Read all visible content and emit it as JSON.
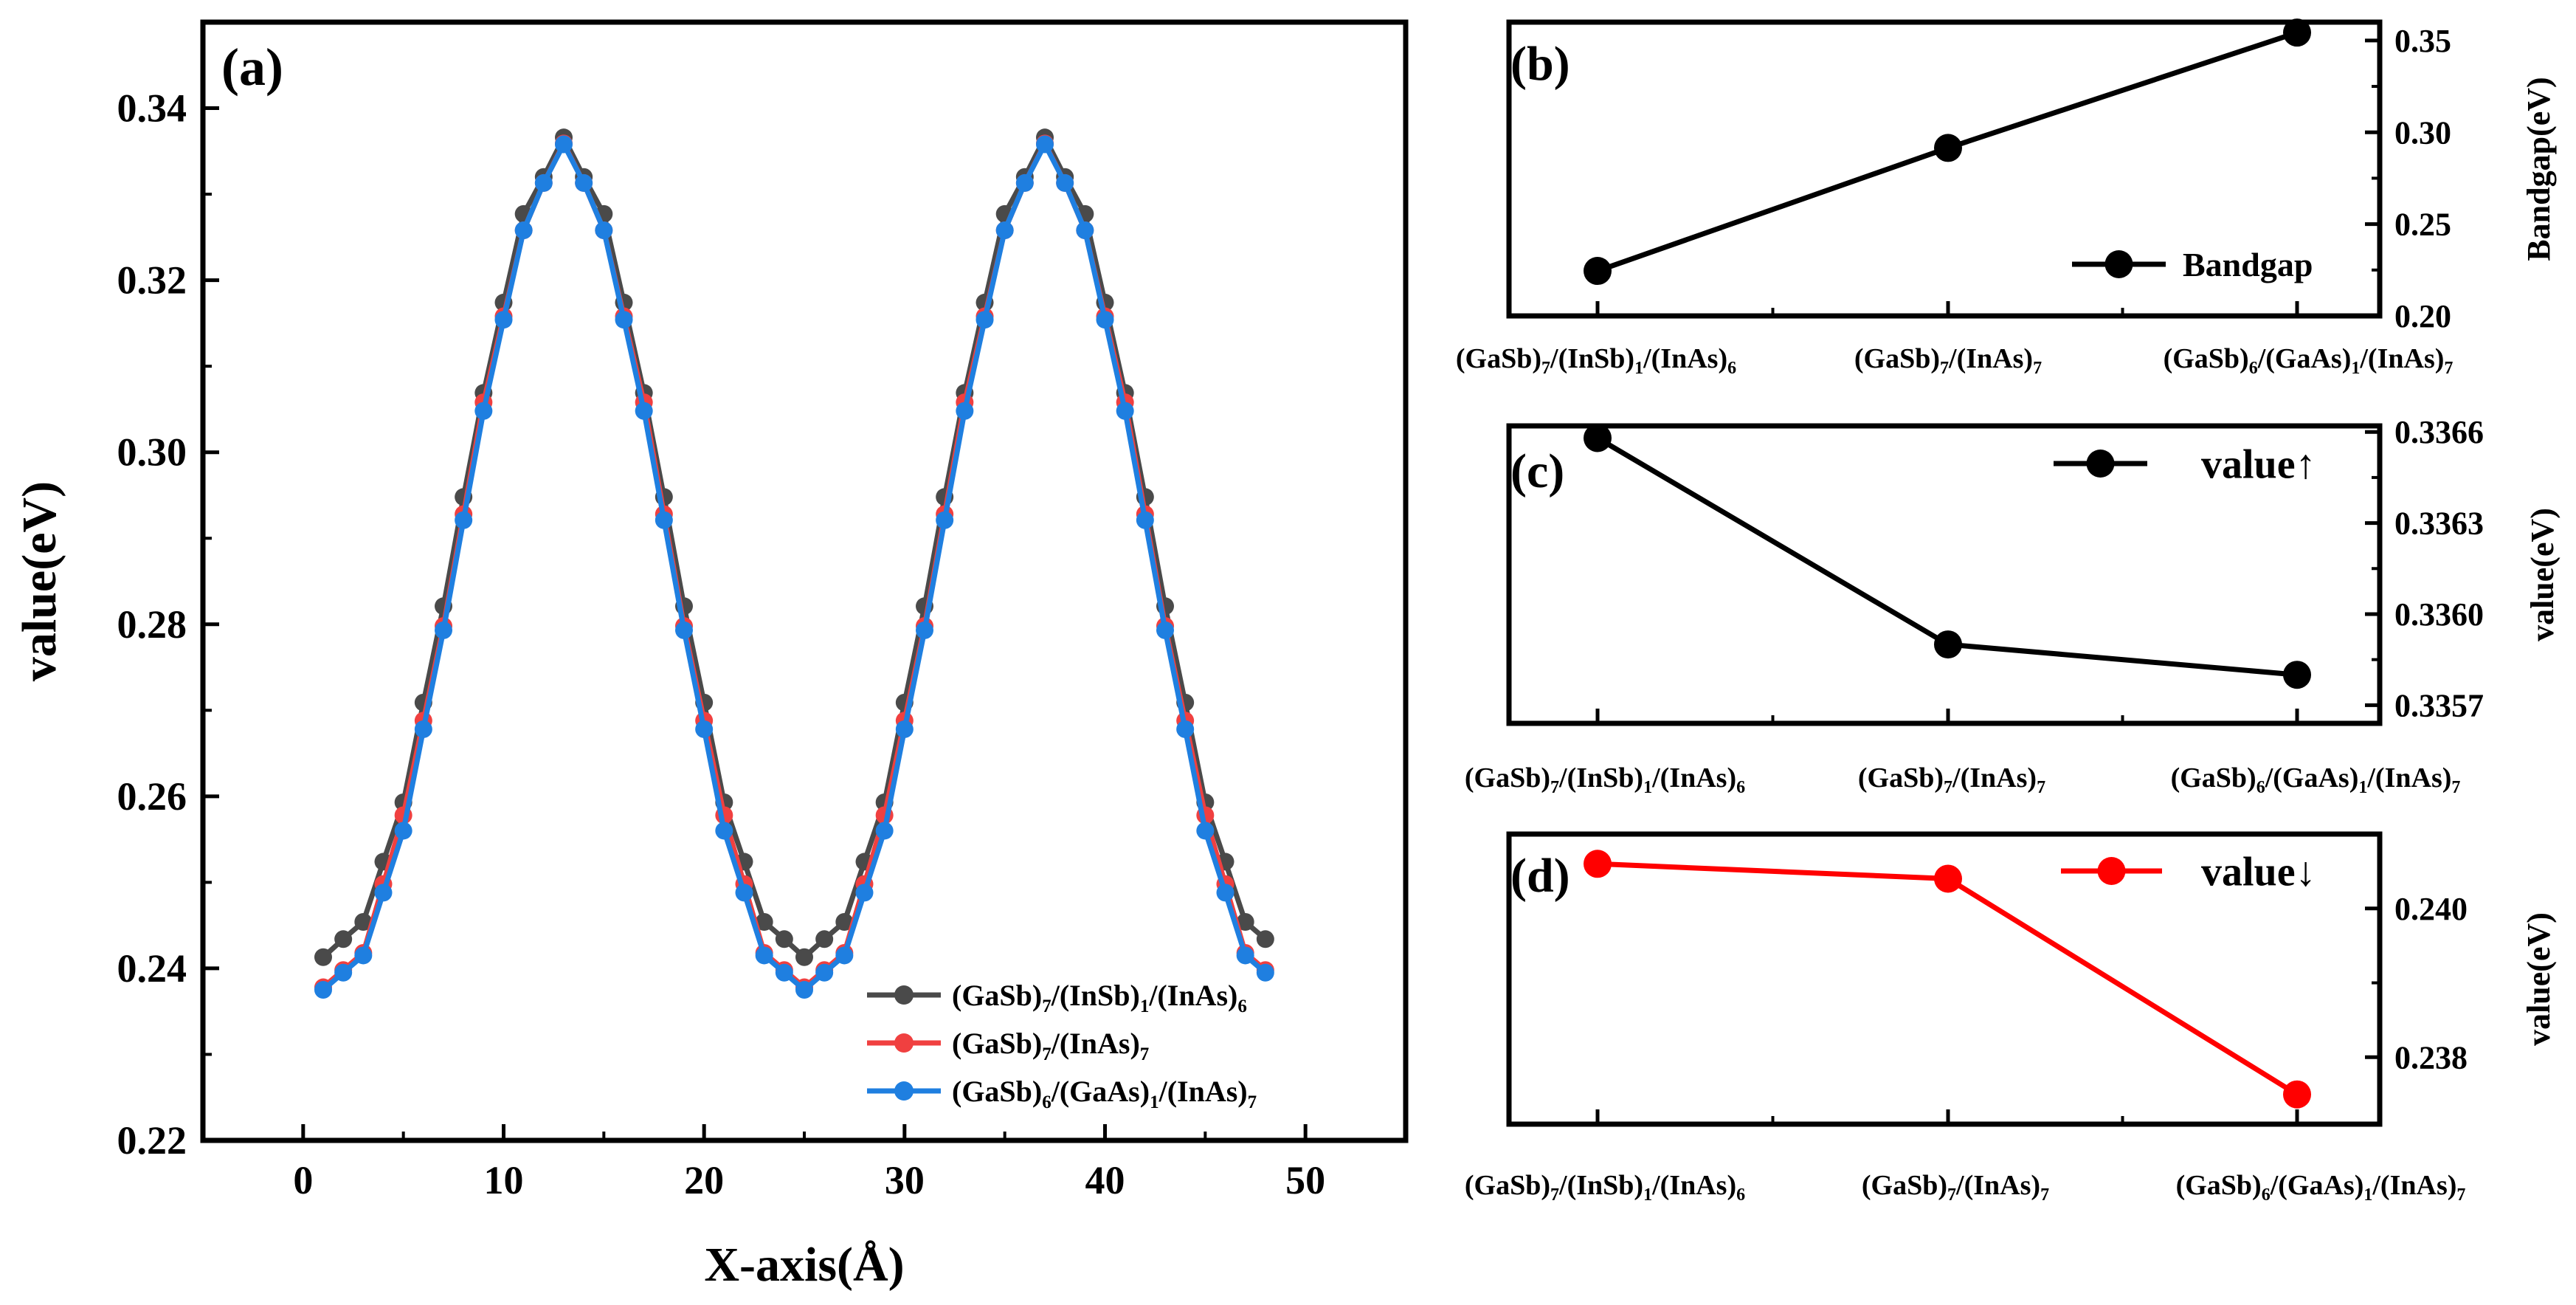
{
  "colors": {
    "black": "#000000",
    "s1": "#4a4a4a",
    "s2": "#f04040",
    "s3": "#1f7fe0",
    "red": "#ff0000"
  },
  "chart_data": [
    {
      "id": "a",
      "panel_label": "(a)",
      "type": "line",
      "xlabel": "X-axis(Å)",
      "ylabel": "value(eV)",
      "xlim": [
        -5,
        55
      ],
      "ylim": [
        0.22,
        0.35
      ],
      "xticks": [
        "0",
        "10",
        "20",
        "30",
        "40",
        "50"
      ],
      "xtick_values": [
        0,
        10,
        20,
        30,
        40,
        50
      ],
      "yticks": [
        "0.22",
        "0.24",
        "0.26",
        "0.28",
        "0.30",
        "0.32",
        "0.34"
      ],
      "ytick_values": [
        0.22,
        0.24,
        0.26,
        0.28,
        0.3,
        0.32,
        0.34
      ],
      "legend_position": "bottom-right",
      "x": [
        1,
        2,
        3,
        4,
        5,
        6,
        7,
        8,
        9,
        10,
        11,
        12,
        13,
        14,
        15,
        16,
        17,
        18,
        19,
        20,
        21,
        22,
        23,
        24,
        25,
        26,
        27,
        28,
        29,
        30,
        31,
        32,
        33,
        34,
        35,
        36,
        37,
        38,
        39,
        40,
        41,
        42,
        43,
        44,
        45,
        46,
        47,
        48
      ],
      "series": [
        {
          "name": "(GaSb)7/(InSb)1/(InAs)6",
          "legend_parts": [
            [
              "(GaSb)",
              false
            ],
            [
              "7",
              true
            ],
            [
              "/(InSb)",
              false
            ],
            [
              "1",
              true
            ],
            [
              "/(InAs)",
              false
            ],
            [
              "6",
              true
            ]
          ],
          "color_key": "s1",
          "values": [
            0.2413,
            0.2434,
            0.2454,
            0.2524,
            0.2593,
            0.2709,
            0.2821,
            0.2948,
            0.3069,
            0.3174,
            0.3277,
            0.332,
            0.3366,
            0.332,
            0.3277,
            0.3174,
            0.3069,
            0.2948,
            0.2821,
            0.2709,
            0.2593,
            0.2524,
            0.2454,
            0.2434,
            0.2413,
            0.2434,
            0.2454,
            0.2524,
            0.2593,
            0.2709,
            0.2821,
            0.2948,
            0.3069,
            0.3174,
            0.3277,
            0.332,
            0.3366,
            0.332,
            0.3277,
            0.3174,
            0.3069,
            0.2948,
            0.2821,
            0.2709,
            0.2593,
            0.2524,
            0.2454,
            0.2434
          ]
        },
        {
          "name": "(GaSb)7/(InAs)7",
          "legend_parts": [
            [
              "(GaSb)",
              false
            ],
            [
              "7",
              true
            ],
            [
              "/(InAs)",
              false
            ],
            [
              "7",
              true
            ]
          ],
          "color_key": "s2",
          "values": [
            0.2378,
            0.2398,
            0.2418,
            0.2498,
            0.2578,
            0.2688,
            0.2798,
            0.2928,
            0.3058,
            0.3158,
            0.3258,
            0.3313,
            0.3359,
            0.3313,
            0.3258,
            0.3158,
            0.3058,
            0.2928,
            0.2798,
            0.2688,
            0.2578,
            0.2498,
            0.2418,
            0.2398,
            0.2378,
            0.2398,
            0.2418,
            0.2498,
            0.2578,
            0.2688,
            0.2798,
            0.2928,
            0.3058,
            0.3158,
            0.3258,
            0.3313,
            0.3359,
            0.3313,
            0.3258,
            0.3158,
            0.3058,
            0.2928,
            0.2798,
            0.2688,
            0.2578,
            0.2498,
            0.2418,
            0.2398
          ]
        },
        {
          "name": "(GaSb)6/(GaAs)1/(InAs)7",
          "legend_parts": [
            [
              "(GaSb)",
              false
            ],
            [
              "6",
              true
            ],
            [
              "/(GaAs)",
              false
            ],
            [
              "1",
              true
            ],
            [
              "/(InAs)",
              false
            ],
            [
              "7",
              true
            ]
          ],
          "color_key": "s3",
          "values": [
            0.2375,
            0.2395,
            0.2415,
            0.2488,
            0.256,
            0.2678,
            0.2793,
            0.2921,
            0.3048,
            0.3154,
            0.3258,
            0.3313,
            0.3358,
            0.3313,
            0.3258,
            0.3154,
            0.3048,
            0.2921,
            0.2793,
            0.2678,
            0.256,
            0.2488,
            0.2415,
            0.2395,
            0.2375,
            0.2395,
            0.2415,
            0.2488,
            0.256,
            0.2678,
            0.2793,
            0.2921,
            0.3048,
            0.3154,
            0.3258,
            0.3313,
            0.3358,
            0.3313,
            0.3258,
            0.3154,
            0.3048,
            0.2921,
            0.2793,
            0.2678,
            0.256,
            0.2488,
            0.2415,
            0.2395
          ]
        }
      ]
    },
    {
      "id": "b",
      "panel_label": "(b)",
      "type": "line",
      "ylabel": "Bandgap(eV)",
      "ylim": [
        0.2,
        0.36
      ],
      "yticks": [
        "0.20",
        "0.25",
        "0.30",
        "0.35"
      ],
      "ytick_values": [
        0.2,
        0.25,
        0.3,
        0.35
      ],
      "color_key": "black",
      "legend": "Bandgap",
      "values": [
        0.2245,
        0.2915,
        0.3543
      ]
    },
    {
      "id": "c",
      "panel_label": "(c)",
      "type": "line",
      "ylabel": "value(eV)",
      "ylim": [
        0.33564,
        0.33662
      ],
      "yticks": [
        "0.3357",
        "0.3360",
        "0.3363",
        "0.3366"
      ],
      "ytick_values": [
        0.3357,
        0.336,
        0.3363,
        0.3366
      ],
      "color_key": "black",
      "legend": "value↑",
      "values": [
        0.33658,
        0.3359,
        0.3358
      ]
    },
    {
      "id": "d",
      "panel_label": "(d)",
      "type": "line",
      "ylabel": "value(eV)",
      "ylim": [
        0.2371,
        0.241
      ],
      "yticks": [
        "0.238",
        "0.240"
      ],
      "ytick_values": [
        0.238,
        0.24
      ],
      "color_key": "red",
      "legend": "value↓",
      "values": [
        0.2406,
        0.2404,
        0.2375
      ]
    }
  ],
  "categories": [
    {
      "name": "(GaSb)7/(InSb)1/(InAs)6",
      "parts": [
        [
          "(GaSb)",
          false
        ],
        [
          "7",
          true
        ],
        [
          "/(InSb)",
          false
        ],
        [
          "1",
          true
        ],
        [
          "/(InAs)",
          false
        ],
        [
          "6",
          true
        ]
      ]
    },
    {
      "name": "(GaSb)7/(InAs)7",
      "parts": [
        [
          "(GaSb)",
          false
        ],
        [
          "7",
          true
        ],
        [
          "/(InAs)",
          false
        ],
        [
          "7",
          true
        ]
      ]
    },
    {
      "name": "(GaSb)6/(GaAs)1/(InAs)7",
      "parts": [
        [
          "(GaSb)",
          false
        ],
        [
          "6",
          true
        ],
        [
          "/(GaAs)",
          false
        ],
        [
          "1",
          true
        ],
        [
          "/(InAs)",
          false
        ],
        [
          "7",
          true
        ]
      ]
    }
  ]
}
